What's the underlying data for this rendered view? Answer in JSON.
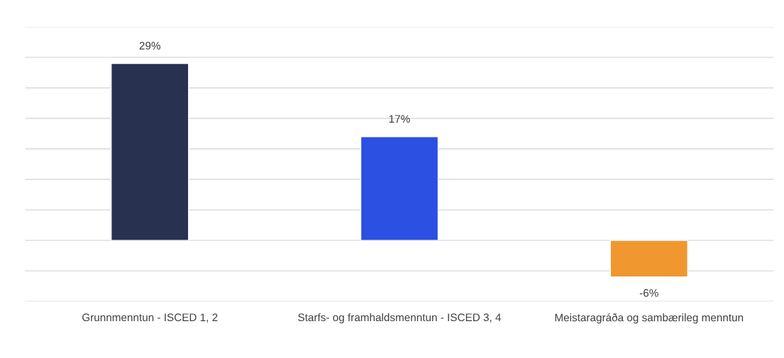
{
  "chart_data": {
    "type": "bar",
    "categories": [
      "Grunnmenntun - ISCED 1, 2",
      "Starfs- og framhaldsmenntun - ISCED 3, 4",
      "Meistaragráða og sambærileg menntun"
    ],
    "values": [
      29,
      17,
      -6
    ],
    "colors": [
      "#283150",
      "#2b50e2",
      "#f0982f"
    ],
    "value_labels": [
      "29%",
      "17%",
      "-6%"
    ],
    "ylim": [
      -10,
      35
    ],
    "yticks": [
      {
        "value": -10,
        "label": null
      },
      {
        "value": -5,
        "label": null
      },
      {
        "value": 0,
        "label": null
      },
      {
        "value": 5,
        "label": null
      },
      {
        "value": 10,
        "label": null
      },
      {
        "value": 15,
        "label": null
      },
      {
        "value": 20,
        "label": null
      },
      {
        "value": 25,
        "label": null
      },
      {
        "value": 30,
        "label": null
      },
      {
        "value": 35,
        "label": null
      }
    ],
    "grid": "y",
    "tick_labels": "x"
  }
}
